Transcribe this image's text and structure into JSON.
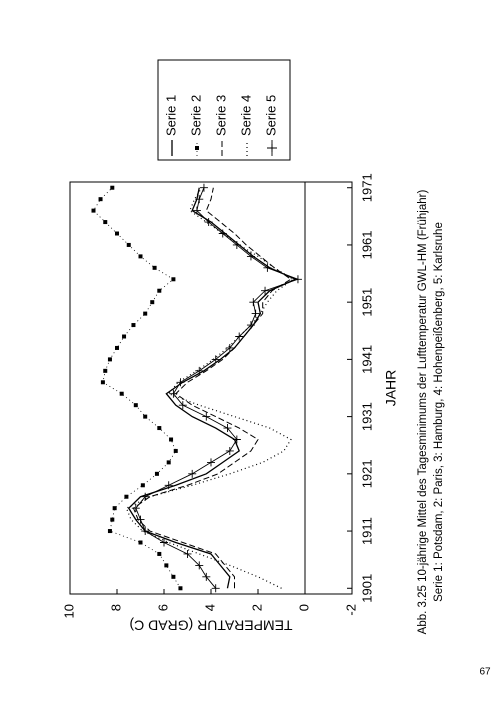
{
  "chart_data": {
    "type": "line",
    "caption": [
      "Abb. 3.25 10-jährige Mittel des Tagesminimums der Lufttemperatur GWL-HM (Frühjahr)",
      "Serie 1: Potsdam, 2: Paris, 3: Hamburg, 4: Hohenpeißenberg, 5: Karlsruhe"
    ],
    "x_label": "JAHR",
    "y_label": "TEMPERATUR (GRAD C)",
    "x": [
      1901,
      1903,
      1905,
      1907,
      1909,
      1911,
      1913,
      1915,
      1917,
      1919,
      1921,
      1923,
      1925,
      1927,
      1929,
      1931,
      1933,
      1935,
      1937,
      1939,
      1941,
      1943,
      1945,
      1947,
      1949,
      1951,
      1953,
      1955,
      1957,
      1959,
      1961,
      1963,
      1965,
      1967,
      1969,
      1971
    ],
    "series": [
      {
        "name": "Serie 1",
        "color": "#000000",
        "style": "solid",
        "values": [
          3.3,
          3.2,
          3.6,
          4.0,
          5.5,
          6.8,
          7.2,
          7.5,
          7.0,
          5.5,
          4.2,
          3.5,
          2.8,
          3.0,
          3.8,
          4.8,
          5.5,
          5.9,
          5.2,
          4.3,
          3.6,
          3.0,
          2.6,
          2.2,
          1.9,
          2.0,
          1.5,
          0.4,
          1.5,
          2.2,
          2.8,
          3.4,
          4.0,
          4.8,
          4.6,
          4.5
        ]
      },
      {
        "name": "Serie 2",
        "color": "#000000",
        "style": "squares",
        "values": [
          5.3,
          5.6,
          5.9,
          6.2,
          7.0,
          8.3,
          8.2,
          8.1,
          7.6,
          6.9,
          6.3,
          5.8,
          5.5,
          5.7,
          6.2,
          6.8,
          7.2,
          7.8,
          8.6,
          8.5,
          8.3,
          8.0,
          7.7,
          7.3,
          6.8,
          6.5,
          6.2,
          5.6,
          6.4,
          7.0,
          7.5,
          8.0,
          8.5,
          9.0,
          8.7,
          8.2
        ]
      },
      {
        "name": "Serie 3",
        "color": "#000000",
        "style": "dashed",
        "values": [
          3.0,
          3.0,
          3.4,
          3.8,
          5.2,
          6.6,
          7.1,
          7.3,
          6.6,
          5.0,
          3.7,
          3.0,
          2.3,
          2.0,
          2.8,
          3.8,
          4.8,
          5.5,
          5.0,
          4.2,
          3.5,
          3.0,
          2.6,
          2.2,
          1.8,
          1.8,
          1.4,
          0.6,
          1.3,
          1.9,
          2.5,
          3.0,
          3.6,
          4.2,
          4.0,
          3.9
        ]
      },
      {
        "name": "Serie 4",
        "color": "#000000",
        "style": "dotted",
        "values": [
          1.0,
          2.0,
          3.2,
          4.5,
          5.8,
          6.9,
          7.4,
          7.6,
          6.6,
          4.8,
          3.2,
          1.8,
          0.9,
          0.6,
          1.5,
          3.0,
          4.5,
          5.8,
          5.4,
          4.6,
          3.9,
          3.3,
          2.8,
          2.3,
          1.9,
          1.6,
          1.2,
          0.5,
          1.3,
          2.0,
          2.8,
          3.5,
          4.2,
          4.9,
          4.7,
          4.4
        ]
      },
      {
        "name": "Serie 5",
        "color": "#000000",
        "style": "plus",
        "values": [
          3.8,
          4.2,
          4.5,
          5.0,
          6.0,
          6.8,
          7.0,
          7.2,
          6.8,
          5.8,
          4.8,
          4.0,
          3.2,
          2.9,
          3.3,
          4.2,
          5.2,
          5.6,
          5.3,
          4.5,
          3.8,
          3.2,
          2.8,
          2.3,
          2.1,
          2.2,
          1.7,
          0.3,
          1.6,
          2.3,
          2.9,
          3.5,
          4.1,
          4.6,
          4.5,
          4.3
        ]
      }
    ],
    "xlim": [
      1900,
      1972
    ],
    "xticks": [
      1901,
      1911,
      1921,
      1931,
      1941,
      1951,
      1961,
      1971
    ],
    "ylim": [
      -2,
      10
    ],
    "yticks": [
      -2,
      0,
      2,
      4,
      6,
      8,
      10
    ],
    "zero_line": true,
    "legend": "right"
  },
  "page_number": "67"
}
